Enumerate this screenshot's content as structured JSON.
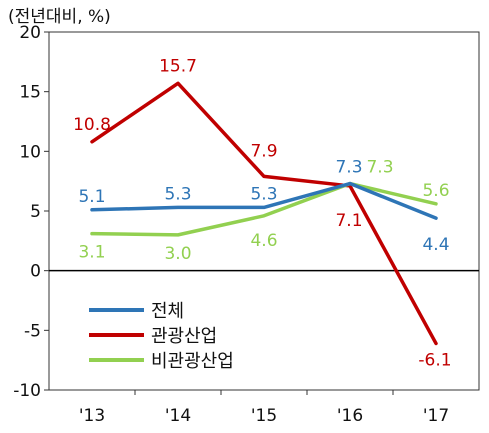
{
  "chart_data": {
    "type": "line",
    "unit_label": "(전년대비, %)",
    "title": "",
    "xlabel": "",
    "ylabel": "",
    "categories": [
      "'13",
      "'14",
      "'15",
      "'16",
      "'17"
    ],
    "ylim": [
      -10,
      20
    ],
    "yticks": [
      -10,
      -5,
      0,
      5,
      10,
      15,
      20
    ],
    "ytick_labels": [
      "-10",
      "-5",
      "0",
      "5",
      "10",
      "15",
      "20"
    ],
    "grid": false,
    "legend_position": "bottom-left",
    "series": [
      {
        "name": "전체",
        "color": "#2e75b6",
        "values": [
          5.1,
          5.3,
          5.3,
          7.3,
          4.4
        ],
        "labels": [
          "5.1",
          "5.3",
          "5.3",
          "7.3",
          "4.4"
        ]
      },
      {
        "name": "관광산업",
        "color": "#c00000",
        "values": [
          10.8,
          15.7,
          7.9,
          7.1,
          -6.1
        ],
        "labels": [
          "10.8",
          "15.7",
          "7.9",
          "7.1",
          "-6.1"
        ]
      },
      {
        "name": "비관광산업",
        "color": "#92d050",
        "values": [
          3.1,
          3.0,
          4.6,
          7.3,
          5.6
        ],
        "labels": [
          "3.1",
          "3.0",
          "4.6",
          "7.3",
          "5.6"
        ]
      }
    ]
  }
}
